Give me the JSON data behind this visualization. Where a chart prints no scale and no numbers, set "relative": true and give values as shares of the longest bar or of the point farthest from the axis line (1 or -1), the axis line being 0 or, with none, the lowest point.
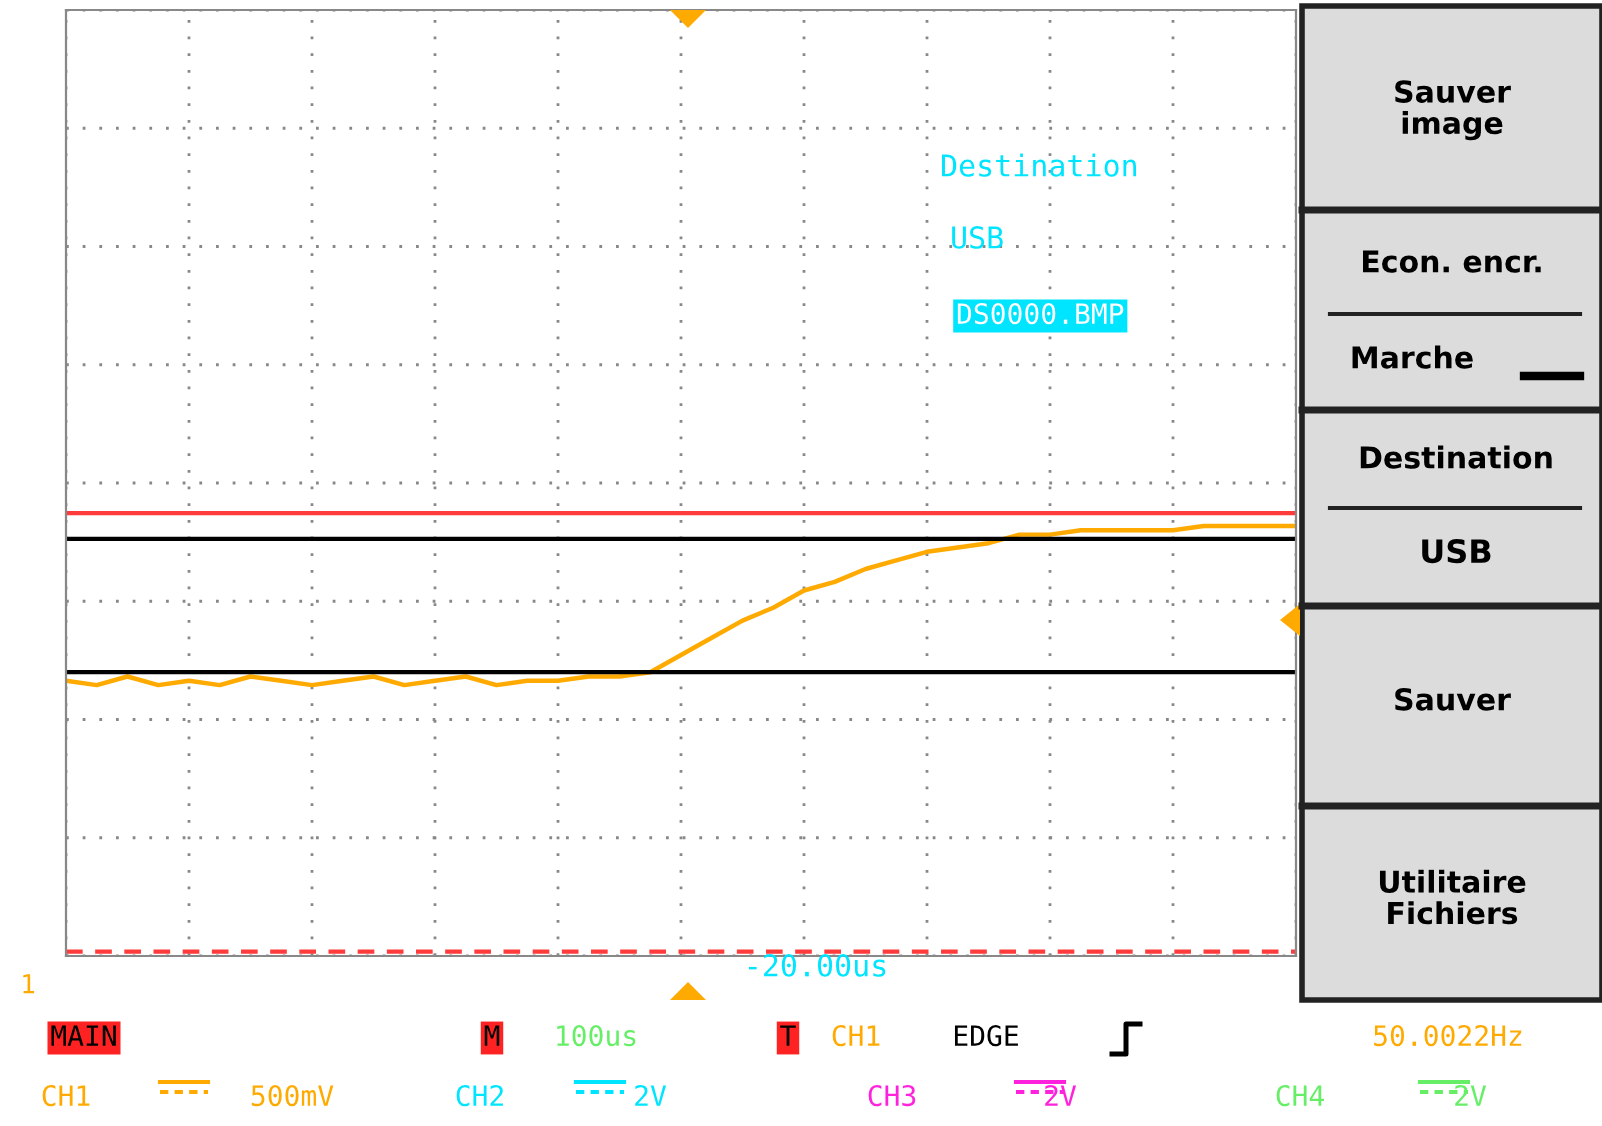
{
  "chart_data": {
    "type": "line",
    "relative": true,
    "grid": true,
    "tick_labels": false,
    "legend": false,
    "categories": [
      null,
      null,
      null,
      null,
      null,
      null,
      null,
      null,
      null,
      null,
      null,
      null,
      null,
      null,
      null,
      null,
      null,
      null,
      null,
      null,
      null,
      null,
      null,
      null,
      null,
      null,
      null,
      null,
      null,
      null,
      null,
      null,
      null,
      null,
      null,
      null,
      null,
      null,
      null,
      null,
      null
    ],
    "series": [
      {
        "color": "#ffaa00",
        "values": [
          0.64,
          0.63,
          0.65,
          0.63,
          0.64,
          0.63,
          0.65,
          0.64,
          0.63,
          0.64,
          0.65,
          0.63,
          0.64,
          0.65,
          0.63,
          0.64,
          0.64,
          0.65,
          0.65,
          0.66,
          0.7,
          0.74,
          0.78,
          0.81,
          0.85,
          0.87,
          0.9,
          0.92,
          0.94,
          0.95,
          0.96,
          0.98,
          0.98,
          0.99,
          0.99,
          0.99,
          0.99,
          1.0,
          1.0,
          1.0,
          1.0
        ]
      }
    ],
    "ref_lines": [
      {
        "axis": "y",
        "value": 1.03,
        "color": "#ff3b3b",
        "line_style": "solid"
      },
      {
        "axis": "y",
        "value": 0.97,
        "color": "#000000",
        "line_style": "solid"
      },
      {
        "axis": "y",
        "value": 0.66,
        "color": "#000000",
        "line_style": "solid"
      },
      {
        "axis": "y",
        "value": 0.01,
        "color": "#ff3b3b",
        "line_style": "dashed"
      }
    ],
    "annotations": [
      "Destination",
      "USB",
      "DS0000.BMP",
      "Sauver\nimage",
      "Econ. encr.",
      "Marche",
      "Destination",
      "USB",
      "Sauver",
      "Utilitaire\nFichiers",
      "1",
      "-20.00us",
      "MAIN",
      "M",
      "100us",
      "T",
      "CH1",
      "EDGE",
      "50.0022Hz",
      "CH1",
      "500mV",
      "CH2",
      "2V",
      "CH3",
      "2V",
      "CH4",
      "2V"
    ]
  }
}
